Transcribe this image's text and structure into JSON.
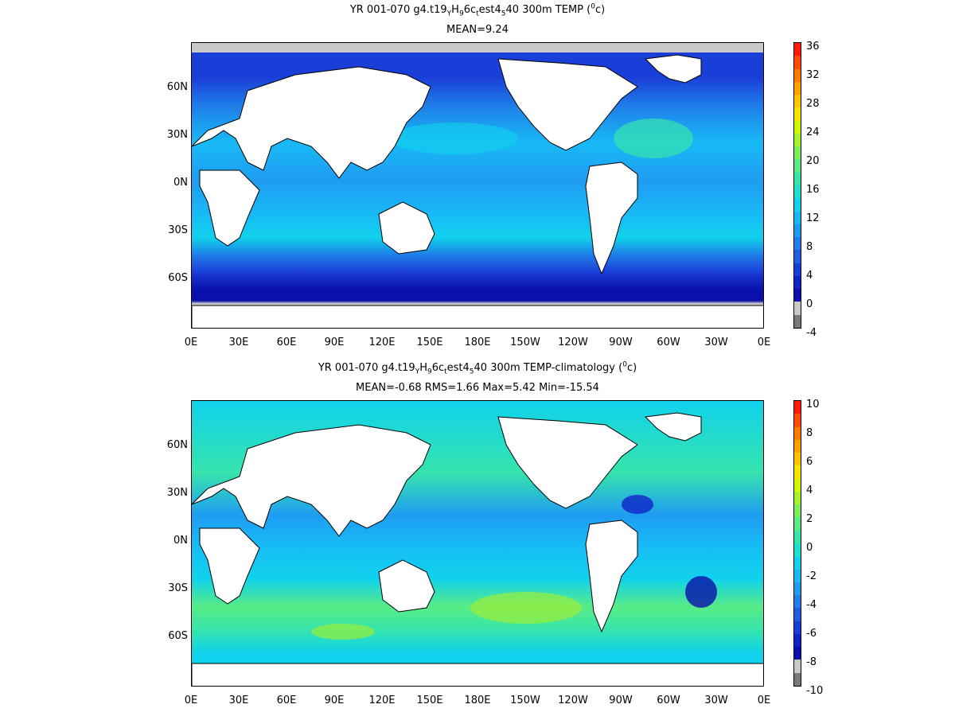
{
  "panels": [
    {
      "id": "top",
      "title_parts": [
        "YR 001-070 g4.t19",
        "Y",
        "H",
        "9",
        "6c",
        "t",
        "est4",
        "5",
        "40 300m TEMP (",
        "0",
        "c)"
      ],
      "subtitle": "MEAN=9.24",
      "x_ticks": [
        "0E",
        "30E",
        "60E",
        "90E",
        "120E",
        "150E",
        "180E",
        "150W",
        "120W",
        "90W",
        "60W",
        "30W",
        "0E"
      ],
      "y_ticks": [
        "60N",
        "30N",
        "0N",
        "30S",
        "60S"
      ],
      "colorbar": {
        "labels": [
          "36",
          "32",
          "28",
          "24",
          "20",
          "16",
          "12",
          "8",
          "4",
          "0",
          "-4"
        ],
        "colors": [
          "#ff1a00",
          "#ff4a00",
          "#ff7a00",
          "#ffa200",
          "#ffc400",
          "#f5e600",
          "#d2f500",
          "#a8f02a",
          "#7cee5a",
          "#58ec86",
          "#36e4ac",
          "#1fe0cf",
          "#10d2ec",
          "#18baf6",
          "#1f9cf2",
          "#1f7ee8",
          "#1f5ee0",
          "#1a3ed8",
          "#1024c8",
          "#0a10aa",
          "#c8c8c8",
          "#787878"
        ]
      },
      "ocean_fill_base": "#1f5ee0"
    },
    {
      "id": "bottom",
      "title_parts": [
        "YR 001-070 g4.t19",
        "Y",
        "H",
        "9",
        "6c",
        "t",
        "est4",
        "5",
        "40 300m TEMP-climatology (",
        "0",
        "c)"
      ],
      "subtitle": "MEAN=-0.68   RMS=1.66   Max=5.42   Min=-15.54",
      "x_ticks": [
        "0E",
        "30E",
        "60E",
        "90E",
        "120E",
        "150E",
        "180E",
        "150W",
        "120W",
        "90W",
        "60W",
        "30W",
        "0E"
      ],
      "y_ticks": [
        "60N",
        "30N",
        "0N",
        "30S",
        "60S"
      ],
      "colorbar": {
        "labels": [
          "10",
          "8",
          "6",
          "4",
          "2",
          "0",
          "-2",
          "-4",
          "-6",
          "-8",
          "-10"
        ],
        "colors": [
          "#ff1a00",
          "#ff4a00",
          "#ff7a00",
          "#ffa200",
          "#ffc400",
          "#f5e600",
          "#d2f500",
          "#a8f02a",
          "#7cee5a",
          "#58ec86",
          "#36e4ac",
          "#1fe0cf",
          "#10d2ec",
          "#18baf6",
          "#1f9cf2",
          "#1f7ee8",
          "#1f5ee0",
          "#1a3ed8",
          "#1024c8",
          "#0a10aa",
          "#c8c8c8",
          "#787878"
        ]
      },
      "ocean_fill_base": "#18baf6"
    }
  ]
}
